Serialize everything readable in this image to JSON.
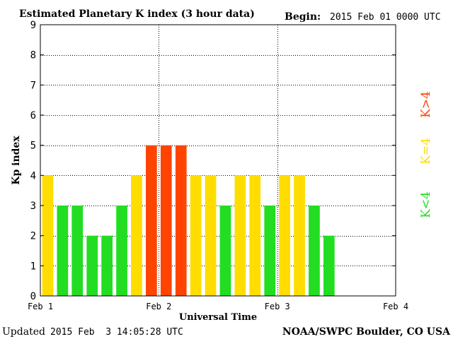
{
  "header": {
    "title": "Estimated Planetary K index (3 hour data)",
    "begin_label": "Begin:",
    "begin_value": "2015 Feb 01 0000 UTC"
  },
  "footer": {
    "updated_label": "Updated",
    "updated_value": "2015 Feb  3 14:05:28 UTC",
    "credit": "NOAA/SWPC Boulder, CO USA"
  },
  "legend": {
    "high": "K>4",
    "equal": "K=4",
    "low": "K<4"
  },
  "colors": {
    "low": "#22dd22",
    "equal": "#ffdd00",
    "high": "#ff4400",
    "grid": "#000000",
    "axis": "#000000"
  },
  "chart_data": {
    "type": "bar",
    "title": "Estimated Planetary K index (3 hour data)",
    "xlabel": "Universal Time",
    "ylabel": "Kp index",
    "ylim": [
      0,
      9
    ],
    "yticks": [
      "0",
      "1",
      "2",
      "3",
      "4",
      "5",
      "6",
      "7",
      "8",
      "9"
    ],
    "xticks": [
      "Feb 1",
      "Feb 2",
      "Feb 3",
      "Feb 4"
    ],
    "x_range_days": 3,
    "bar_interval_hours": 3,
    "grid": true,
    "values": [
      4,
      3,
      3,
      2,
      2,
      3,
      4,
      5,
      5,
      5,
      4,
      4,
      3,
      4,
      4,
      3,
      4,
      4,
      3,
      2
    ]
  }
}
